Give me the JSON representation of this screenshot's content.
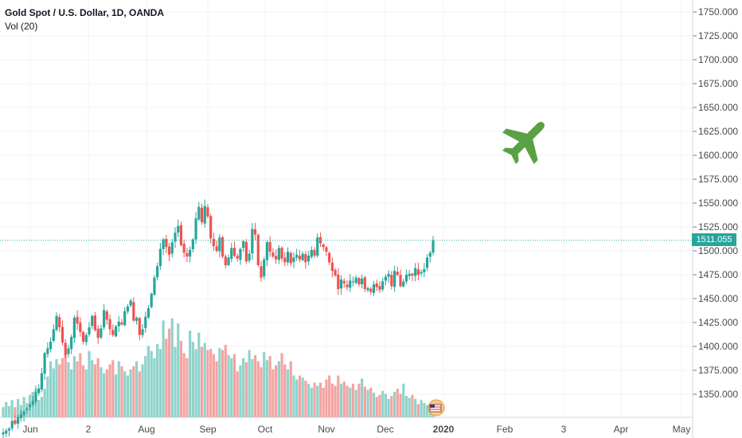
{
  "chart_data": {
    "type": "candlestick",
    "title": "Gold Spot / U.S. Dollar, 1D, OANDA",
    "volume_label": "Vol (20)",
    "last_price": "1511.055",
    "x_tick_labels": [
      "Jun",
      "2",
      "Aug",
      "Sep",
      "Oct",
      "Nov",
      "Dec",
      "2020",
      "Feb",
      "3",
      "Apr",
      "May"
    ],
    "y_tick_labels": [
      "1750.000",
      "1725.000",
      "1700.000",
      "1675.000",
      "1650.000",
      "1625.000",
      "1600.000",
      "1575.000",
      "1550.000",
      "1525.000",
      "1500.000",
      "1475.000",
      "1450.000",
      "1425.000",
      "1400.000",
      "1375.000",
      "1350.000"
    ],
    "ylim": [
      1325,
      1760
    ],
    "colors": {
      "up": "#26a69a",
      "down": "#ef5350",
      "vol_up": "#8fd3cb",
      "vol_down": "#f5a3a1",
      "price_line": "#26a69a",
      "annotation": "#5ba144"
    },
    "annotation_icon": "airplane-icon",
    "closes": [
      1310,
      1312,
      1314,
      1322,
      1319,
      1326,
      1329,
      1332,
      1335,
      1339,
      1343,
      1352,
      1356,
      1372,
      1393,
      1398,
      1405,
      1418,
      1432,
      1420,
      1404,
      1391,
      1398,
      1410,
      1430,
      1424,
      1415,
      1405,
      1412,
      1420,
      1432,
      1417,
      1409,
      1419,
      1438,
      1428,
      1418,
      1412,
      1421,
      1426,
      1423,
      1437,
      1442,
      1448,
      1427,
      1430,
      1412,
      1418,
      1431,
      1440,
      1455,
      1472,
      1484,
      1502,
      1512,
      1504,
      1496,
      1509,
      1519,
      1526,
      1506,
      1498,
      1494,
      1501,
      1512,
      1534,
      1546,
      1530,
      1547,
      1536,
      1513,
      1505,
      1500,
      1514,
      1494,
      1485,
      1493,
      1503,
      1495,
      1492,
      1502,
      1510,
      1489,
      1497,
      1523,
      1517,
      1485,
      1472,
      1491,
      1509,
      1499,
      1494,
      1491,
      1503,
      1492,
      1488,
      1499,
      1487,
      1493,
      1496,
      1491,
      1497,
      1488,
      1495,
      1501,
      1495,
      1514,
      1508,
      1504,
      1499,
      1488,
      1479,
      1474,
      1460,
      1470,
      1466,
      1462,
      1469,
      1468,
      1472,
      1465,
      1471,
      1460,
      1461,
      1457,
      1465,
      1462,
      1459,
      1468,
      1473,
      1476,
      1463,
      1479,
      1475,
      1463,
      1468,
      1475,
      1476,
      1474,
      1482,
      1475,
      1478,
      1481,
      1493,
      1498,
      1511.055
    ],
    "volumes_relative": [
      0.1,
      0.15,
      0.11,
      0.17,
      0.1,
      0.18,
      0.12,
      0.2,
      0.14,
      0.22,
      0.25,
      0.28,
      0.17,
      0.2,
      0.28,
      0.4,
      0.55,
      0.48,
      0.57,
      0.52,
      0.58,
      0.62,
      0.54,
      0.47,
      0.6,
      0.55,
      0.63,
      0.51,
      0.47,
      0.65,
      0.56,
      0.52,
      0.58,
      0.49,
      0.43,
      0.47,
      0.52,
      0.56,
      0.42,
      0.55,
      0.5,
      0.45,
      0.41,
      0.47,
      0.5,
      0.55,
      0.45,
      0.52,
      0.6,
      0.7,
      0.65,
      0.58,
      0.72,
      0.67,
      0.95,
      0.77,
      0.87,
      0.97,
      0.69,
      0.92,
      0.75,
      0.63,
      0.58,
      0.85,
      0.74,
      0.67,
      0.83,
      0.69,
      0.73,
      0.66,
      0.67,
      0.62,
      0.55,
      0.68,
      0.66,
      0.71,
      0.61,
      0.58,
      0.62,
      0.45,
      0.51,
      0.58,
      0.54,
      0.66,
      0.57,
      0.61,
      0.55,
      0.49,
      0.64,
      0.56,
      0.6,
      0.47,
      0.51,
      0.55,
      0.63,
      0.52,
      0.47,
      0.55,
      0.41,
      0.37,
      0.41,
      0.39,
      0.36,
      0.33,
      0.29,
      0.34,
      0.31,
      0.34,
      0.29,
      0.37,
      0.41,
      0.33,
      0.31,
      0.41,
      0.33,
      0.35,
      0.31,
      0.29,
      0.33,
      0.27,
      0.33,
      0.38,
      0.3,
      0.27,
      0.29,
      0.24,
      0.2,
      0.22,
      0.26,
      0.23,
      0.18,
      0.21,
      0.25,
      0.28,
      0.23,
      0.33,
      0.21,
      0.19,
      0.22,
      0.18,
      0.13,
      0.17,
      0.14,
      0.12,
      0.11,
      0.1
    ]
  }
}
